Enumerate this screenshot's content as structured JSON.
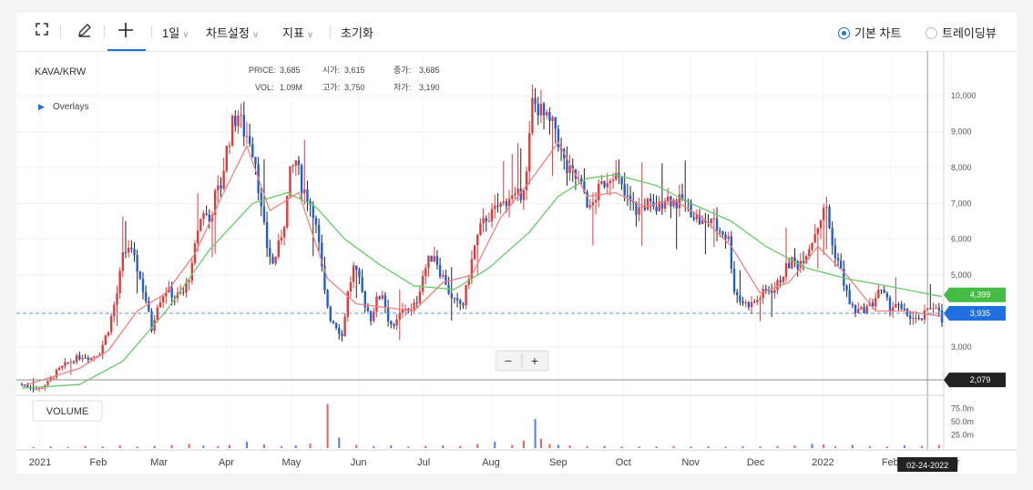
{
  "toolbar": {
    "fullscreen_icon": "expand-icon",
    "draw_icon": "pencil-icon",
    "crosshair_icon": "crosshair-plus-icon",
    "period": "1일",
    "chart_settings": "차트설정",
    "indicators": "지표",
    "reset": "초기화",
    "mode_basic": "기본 차트",
    "mode_trading": "트레이딩뷰",
    "selected_mode": "basic"
  },
  "chart_data": {
    "type": "candlestick",
    "title": "KAVA/KRW",
    "overlays_label": "Overlays",
    "volume_label": "VOLUME",
    "info": {
      "price_label": "PRICE:",
      "price": "3,685",
      "vol_label": "VOL:",
      "vol": "1.09M",
      "open_label": "시가:",
      "open": "3,615",
      "close_label": "종가:",
      "close": "3,685",
      "high_label": "고가:",
      "high": "3,750",
      "low_label": "저가:",
      "low": "3,190"
    },
    "y_axis": {
      "min": 1700,
      "max": 11200,
      "ticks": [
        "3,000",
        "4,000",
        "5,000",
        "6,000",
        "7,000",
        "8,000",
        "9,000",
        "10,000"
      ]
    },
    "volume_axis": {
      "max": 90,
      "ticks": [
        "25.0m",
        "50.0m",
        "75.0m"
      ]
    },
    "x_ticks": [
      "2021",
      "Feb",
      "Mar",
      "Apr",
      "May",
      "Jun",
      "Jul",
      "Aug",
      "Sep",
      "Oct",
      "Nov",
      "Dec",
      "2022",
      "Feb",
      "Mar"
    ],
    "price_badges": {
      "ma_long": "4,399",
      "last": "3,935",
      "crosshair": "2,079"
    },
    "crosshair_date": "02-24-2022",
    "zoom_minus": "−",
    "zoom_plus": "+",
    "colors": {
      "up": "#e03a3a",
      "down": "#1f5fd6",
      "ma_short": "#f08080",
      "ma_long": "#66cc66",
      "last_badge": "#1f6fe0",
      "ma_badge": "#44bb44",
      "crosshair_badge": "#222222"
    },
    "price_path": [
      [
        0,
        1950
      ],
      [
        3,
        1870
      ],
      [
        6,
        1830
      ],
      [
        9,
        2000
      ],
      [
        12,
        2300
      ],
      [
        15,
        2500
      ],
      [
        18,
        2650
      ],
      [
        21,
        2750
      ],
      [
        24,
        2700
      ],
      [
        27,
        2850
      ],
      [
        30,
        3500
      ],
      [
        33,
        4500
      ],
      [
        35,
        5500
      ],
      [
        37,
        5800
      ],
      [
        40,
        5200
      ],
      [
        43,
        4300
      ],
      [
        45,
        3500
      ],
      [
        47,
        4200
      ],
      [
        50,
        4600
      ],
      [
        53,
        4400
      ],
      [
        56,
        4500
      ],
      [
        59,
        5200
      ],
      [
        61,
        6300
      ],
      [
        63,
        6800
      ],
      [
        65,
        6500
      ],
      [
        67,
        7200
      ],
      [
        69,
        7500
      ],
      [
        71,
        8500
      ],
      [
        73,
        9200
      ],
      [
        75,
        9500
      ],
      [
        77,
        9000
      ],
      [
        79,
        8800
      ],
      [
        81,
        8200
      ],
      [
        83,
        6800
      ],
      [
        85,
        5800
      ],
      [
        87,
        5300
      ],
      [
        89,
        5800
      ],
      [
        91,
        6500
      ],
      [
        93,
        7800
      ],
      [
        95,
        8200
      ],
      [
        97,
        7500
      ],
      [
        99,
        7200
      ],
      [
        101,
        6800
      ],
      [
        103,
        5800
      ],
      [
        105,
        4500
      ],
      [
        107,
        3800
      ],
      [
        109,
        3600
      ],
      [
        111,
        3300
      ],
      [
        113,
        4500
      ],
      [
        115,
        5200
      ],
      [
        117,
        4800
      ],
      [
        119,
        4200
      ],
      [
        121,
        3800
      ],
      [
        123,
        4300
      ],
      [
        125,
        4500
      ],
      [
        127,
        3800
      ],
      [
        129,
        3500
      ],
      [
        131,
        3900
      ],
      [
        133,
        4100
      ],
      [
        135,
        4000
      ],
      [
        137,
        4300
      ],
      [
        139,
        5000
      ],
      [
        141,
        5400
      ],
      [
        143,
        5600
      ],
      [
        145,
        5100
      ],
      [
        147,
        4800
      ],
      [
        149,
        4300
      ],
      [
        151,
        4200
      ],
      [
        153,
        4200
      ],
      [
        155,
        5000
      ],
      [
        157,
        5800
      ],
      [
        159,
        6300
      ],
      [
        161,
        6600
      ],
      [
        163,
        6700
      ],
      [
        165,
        6900
      ],
      [
        167,
        7000
      ],
      [
        169,
        7200
      ],
      [
        171,
        7100
      ],
      [
        173,
        7300
      ],
      [
        175,
        7800
      ],
      [
        177,
        9800
      ],
      [
        179,
        9700
      ],
      [
        181,
        9400
      ],
      [
        183,
        9200
      ],
      [
        185,
        9100
      ],
      [
        187,
        8400
      ],
      [
        189,
        7900
      ],
      [
        191,
        7800
      ],
      [
        193,
        7600
      ],
      [
        195,
        7300
      ],
      [
        197,
        6800
      ],
      [
        199,
        7200
      ],
      [
        201,
        7500
      ],
      [
        203,
        7700
      ],
      [
        205,
        7900
      ],
      [
        207,
        7600
      ],
      [
        209,
        7200
      ],
      [
        211,
        7000
      ],
      [
        213,
        6800
      ],
      [
        215,
        6900
      ],
      [
        217,
        7000
      ],
      [
        219,
        6800
      ],
      [
        221,
        6900
      ],
      [
        223,
        7200
      ],
      [
        225,
        7100
      ],
      [
        227,
        7000
      ],
      [
        229,
        7100
      ],
      [
        231,
        6900
      ],
      [
        233,
        6700
      ],
      [
        235,
        6500
      ],
      [
        237,
        6400
      ],
      [
        239,
        6600
      ],
      [
        241,
        6300
      ],
      [
        243,
        6200
      ],
      [
        245,
        6000
      ],
      [
        247,
        4600
      ],
      [
        249,
        4300
      ],
      [
        251,
        4200
      ],
      [
        253,
        4200
      ],
      [
        255,
        4300
      ],
      [
        257,
        4500
      ],
      [
        259,
        4600
      ],
      [
        261,
        4600
      ],
      [
        263,
        4900
      ],
      [
        265,
        5200
      ],
      [
        267,
        5400
      ],
      [
        269,
        5300
      ],
      [
        271,
        5500
      ],
      [
        273,
        5800
      ],
      [
        275,
        6200
      ],
      [
        277,
        6600
      ],
      [
        279,
        6900
      ],
      [
        281,
        5800
      ],
      [
        283,
        5400
      ],
      [
        285,
        4800
      ],
      [
        287,
        4200
      ],
      [
        289,
        4000
      ],
      [
        291,
        4000
      ],
      [
        293,
        4100
      ],
      [
        295,
        4200
      ],
      [
        297,
        4600
      ],
      [
        299,
        4400
      ],
      [
        301,
        4100
      ],
      [
        303,
        4200
      ],
      [
        305,
        4000
      ],
      [
        307,
        3900
      ],
      [
        309,
        3800
      ],
      [
        311,
        3700
      ],
      [
        313,
        3900
      ],
      [
        315,
        4100
      ],
      [
        317,
        4200
      ],
      [
        319,
        3685
      ]
    ],
    "ma_short": [
      [
        0,
        1900
      ],
      [
        20,
        2400
      ],
      [
        30,
        2900
      ],
      [
        40,
        4000
      ],
      [
        50,
        4500
      ],
      [
        60,
        5600
      ],
      [
        70,
        7300
      ],
      [
        78,
        8600
      ],
      [
        86,
        6800
      ],
      [
        96,
        7300
      ],
      [
        106,
        4900
      ],
      [
        116,
        4200
      ],
      [
        126,
        4100
      ],
      [
        136,
        4000
      ],
      [
        146,
        4800
      ],
      [
        156,
        5000
      ],
      [
        166,
        6600
      ],
      [
        176,
        7600
      ],
      [
        186,
        8700
      ],
      [
        196,
        7200
      ],
      [
        206,
        7300
      ],
      [
        216,
        6900
      ],
      [
        226,
        7100
      ],
      [
        236,
        6600
      ],
      [
        246,
        5800
      ],
      [
        256,
        4500
      ],
      [
        266,
        4800
      ],
      [
        276,
        5800
      ],
      [
        286,
        5000
      ],
      [
        296,
        4000
      ],
      [
        306,
        4000
      ],
      [
        319,
        3850
      ]
    ],
    "ma_long": [
      [
        0,
        1850
      ],
      [
        20,
        1950
      ],
      [
        35,
        2600
      ],
      [
        50,
        4000
      ],
      [
        65,
        5700
      ],
      [
        80,
        7000
      ],
      [
        92,
        7300
      ],
      [
        102,
        6900
      ],
      [
        112,
        6000
      ],
      [
        124,
        5300
      ],
      [
        136,
        4700
      ],
      [
        150,
        4600
      ],
      [
        162,
        5200
      ],
      [
        176,
        6200
      ],
      [
        186,
        7200
      ],
      [
        196,
        7700
      ],
      [
        206,
        7800
      ],
      [
        220,
        7500
      ],
      [
        232,
        7000
      ],
      [
        246,
        6500
      ],
      [
        258,
        5800
      ],
      [
        272,
        5200
      ],
      [
        286,
        4900
      ],
      [
        300,
        4700
      ],
      [
        319,
        4399
      ]
    ],
    "volume": [
      [
        4,
        2
      ],
      [
        10,
        3
      ],
      [
        16,
        2
      ],
      [
        22,
        4
      ],
      [
        28,
        3
      ],
      [
        34,
        5
      ],
      [
        40,
        3
      ],
      [
        46,
        4
      ],
      [
        52,
        6
      ],
      [
        58,
        8
      ],
      [
        63,
        5
      ],
      [
        68,
        4
      ],
      [
        72,
        6
      ],
      [
        78,
        12
      ],
      [
        84,
        7
      ],
      [
        90,
        4
      ],
      [
        95,
        5
      ],
      [
        100,
        9
      ],
      [
        106,
        84
      ],
      [
        110,
        20
      ],
      [
        116,
        6
      ],
      [
        122,
        4
      ],
      [
        128,
        5
      ],
      [
        134,
        3
      ],
      [
        140,
        4
      ],
      [
        146,
        5
      ],
      [
        152,
        4
      ],
      [
        158,
        8
      ],
      [
        164,
        12
      ],
      [
        170,
        6
      ],
      [
        174,
        14
      ],
      [
        178,
        55
      ],
      [
        180,
        18
      ],
      [
        183,
        8
      ],
      [
        186,
        6
      ],
      [
        190,
        5
      ],
      [
        196,
        4
      ],
      [
        202,
        4
      ],
      [
        208,
        3
      ],
      [
        214,
        3
      ],
      [
        220,
        3
      ],
      [
        226,
        4
      ],
      [
        232,
        3
      ],
      [
        238,
        3
      ],
      [
        244,
        3
      ],
      [
        250,
        4
      ],
      [
        256,
        3
      ],
      [
        262,
        4
      ],
      [
        268,
        5
      ],
      [
        274,
        8
      ],
      [
        278,
        7
      ],
      [
        282,
        4
      ],
      [
        288,
        6
      ],
      [
        294,
        4
      ],
      [
        300,
        3
      ],
      [
        306,
        5
      ],
      [
        312,
        4
      ],
      [
        318,
        6
      ]
    ]
  }
}
